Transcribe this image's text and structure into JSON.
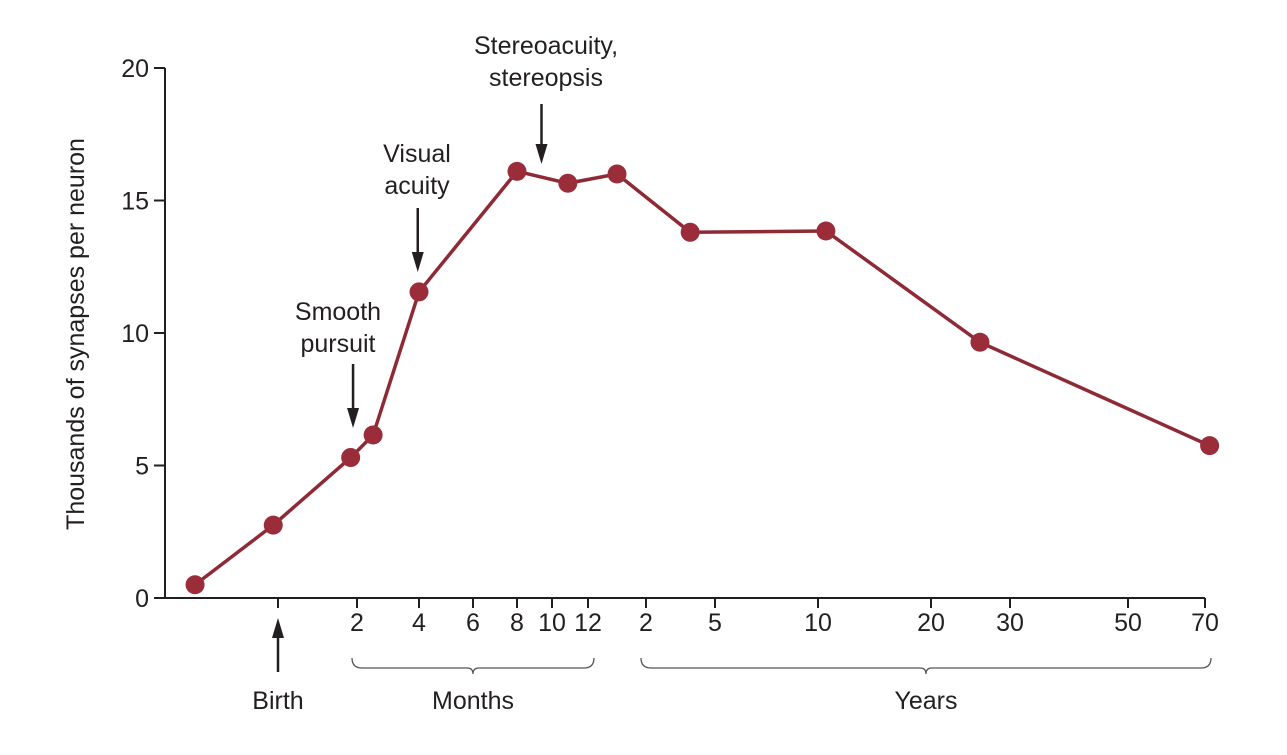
{
  "chart_data": {
    "type": "line",
    "title": "",
    "ylabel": "Thousands of synapses per neuron",
    "xlabel": "",
    "ylim": [
      0,
      20
    ],
    "y_ticks": [
      0,
      5,
      10,
      15,
      20
    ],
    "grid": false,
    "colors": {
      "line": "#8e2a35",
      "point": "#9b2d3a",
      "axis": "#231f20"
    },
    "x_axis_note": "x values are positions on the non-linear age axis, in units of tick index (0 = Birth, 1 = 2 months ... 13 = 70 years)",
    "x_ticks": [
      {
        "index": 0,
        "label": ""
      },
      {
        "index": 1,
        "label": "2"
      },
      {
        "index": 2,
        "label": "4"
      },
      {
        "index": 3,
        "label": "6"
      },
      {
        "index": 4,
        "label": "8"
      },
      {
        "index": 5,
        "label": "10"
      },
      {
        "index": 6,
        "label": "12"
      },
      {
        "index": 7,
        "label": "2"
      },
      {
        "index": 8,
        "label": "5"
      },
      {
        "index": 9,
        "label": "10"
      },
      {
        "index": 10,
        "label": "20"
      },
      {
        "index": 11,
        "label": "30"
      },
      {
        "index": 12,
        "label": "50"
      },
      {
        "index": 13,
        "label": "70"
      }
    ],
    "groups": [
      {
        "label": "Months",
        "from": 1,
        "to": 6
      },
      {
        "label": "Years",
        "from": 7,
        "to": 13
      }
    ],
    "series": [
      {
        "name": "Synapses per neuron",
        "x": [
          -1.05,
          -0.06,
          0.92,
          1.26,
          2.0,
          4.0,
          5.44,
          6.5,
          7.64,
          9.07,
          10.62,
          13.06
        ],
        "values": [
          0.5,
          2.75,
          5.3,
          6.15,
          11.55,
          16.1,
          15.65,
          16.0,
          13.8,
          13.85,
          9.65,
          5.75
        ]
      }
    ],
    "annotations": [
      {
        "lines": [
          "Birth"
        ],
        "at": 0,
        "direction": "up"
      },
      {
        "lines": [
          "Smooth",
          "pursuit"
        ],
        "at": 0.95,
        "direction": "down"
      },
      {
        "lines": [
          "Visual",
          "acuity"
        ],
        "at": 1.98,
        "direction": "down"
      },
      {
        "lines": [
          "Stereoacuity,",
          "stereopsis"
        ],
        "at": 4.7,
        "direction": "down"
      }
    ]
  }
}
